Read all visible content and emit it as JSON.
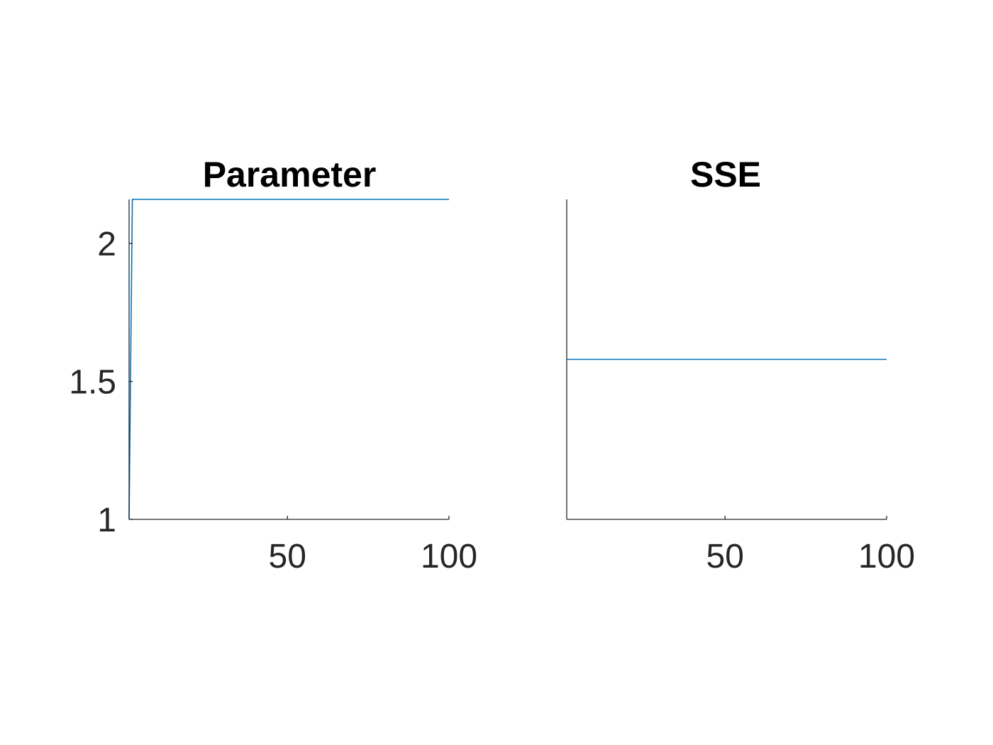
{
  "chart_data": [
    {
      "type": "line",
      "title": "Parameter",
      "xlabel": "",
      "ylabel": "",
      "xlim": [
        1,
        100
      ],
      "ylim": [
        1,
        2.16
      ],
      "xticks": [
        50,
        100
      ],
      "xtick_labels": [
        "50",
        "100"
      ],
      "yticks": [
        1,
        1.5,
        2
      ],
      "ytick_labels": [
        "1",
        "1.5",
        "2"
      ],
      "grid": false,
      "axes_box": [
        "left",
        "bottom"
      ],
      "series": [
        {
          "color": "#0072BD",
          "x": [
            1,
            2,
            100
          ],
          "y": [
            1,
            2.16,
            2.16
          ]
        }
      ]
    },
    {
      "type": "line",
      "title": "SSE",
      "xlabel": "",
      "ylabel": "",
      "xlim": [
        1,
        100
      ],
      "ylim": [
        0,
        1
      ],
      "xticks": [
        50,
        100
      ],
      "xtick_labels": [
        "50",
        "100"
      ],
      "yticks": [],
      "ytick_labels": [],
      "grid": false,
      "axes_box": [
        "left",
        "bottom"
      ],
      "series": [
        {
          "color": "#0072BD",
          "x": [
            1,
            100
          ],
          "y": [
            0.5,
            0.5
          ]
        }
      ]
    }
  ]
}
